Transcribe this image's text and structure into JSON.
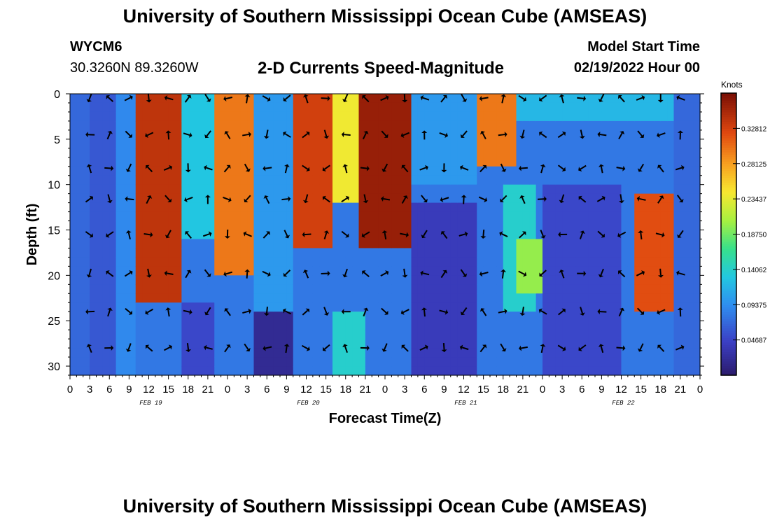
{
  "header": {
    "title": "University of Southern Mississippi Ocean Cube (AMSEAS)",
    "footer_title": "University of Southern Mississippi Ocean Cube (AMSEAS)",
    "station_id": "WYCM6",
    "station_coords": "30.3260N  89.3260W",
    "model_start_label": "Model Start Time",
    "model_start_value": "02/19/2022 Hour 00"
  },
  "chart_data": {
    "type": "heatmap",
    "title": "2-D Currents Speed-Magnitude",
    "xlabel": "Forecast Time(Z)",
    "ylabel": "Depth (ft)",
    "colorbar_label": "Knots",
    "colorbar_ticks": [
      "0.32812",
      "0.28125",
      "0.23437",
      "0.18750",
      "0.14062",
      "0.09375",
      "0.04687"
    ],
    "colorbar_values": [
      0.32812,
      0.28125,
      0.23437,
      0.1875,
      0.14062,
      0.09375,
      0.04687
    ],
    "colorbar_range": [
      0,
      0.375
    ],
    "xlim": [
      0,
      96
    ],
    "ylim": [
      0,
      31
    ],
    "x_tick_hours": [
      0,
      3,
      6,
      9,
      12,
      15,
      18,
      21,
      24,
      27,
      30,
      33,
      36,
      39,
      42,
      45,
      48,
      51,
      54,
      57,
      60,
      63,
      66,
      69,
      72,
      75,
      78,
      81,
      84,
      87,
      90,
      93,
      96
    ],
    "x_tick_labels": [
      "0",
      "3",
      "6",
      "9",
      "12",
      "15",
      "18",
      "21",
      "0",
      "3",
      "6",
      "9",
      "12",
      "15",
      "18",
      "21",
      "0",
      "3",
      "6",
      "9",
      "12",
      "15",
      "18",
      "21",
      "0",
      "3",
      "6",
      "9",
      "12",
      "15",
      "18",
      "21",
      "0"
    ],
    "y_ticks": [
      0,
      5,
      10,
      15,
      20,
      25,
      30
    ],
    "date_labels": [
      {
        "hour": 12,
        "text": "FEB 19"
      },
      {
        "hour": 36,
        "text": "FEB 20"
      },
      {
        "hour": 60,
        "text": "FEB 21"
      },
      {
        "hour": 84,
        "text": "FEB 22"
      }
    ],
    "arrow_depths": [
      0.5,
      4.5,
      8.2,
      11.6,
      15.5,
      19.8,
      24,
      28
    ],
    "speed_ranges": [
      {
        "x0": 0,
        "x1": 3,
        "y0": 0,
        "y1": 31,
        "speed": 0.07
      },
      {
        "x0": 3,
        "x1": 7,
        "y0": 0,
        "y1": 31,
        "speed": 0.06
      },
      {
        "x0": 7,
        "x1": 10,
        "y0": 0,
        "y1": 31,
        "speed": 0.09
      },
      {
        "x0": 10,
        "x1": 17,
        "y0": 0,
        "y1": 23,
        "speed": 0.34
      },
      {
        "x0": 17,
        "x1": 22,
        "y0": 0,
        "y1": 16,
        "speed": 0.13
      },
      {
        "x0": 22,
        "x1": 28,
        "y0": 0,
        "y1": 20,
        "speed": 0.3
      },
      {
        "x0": 28,
        "x1": 34,
        "y0": 0,
        "y1": 31,
        "speed": 0.1
      },
      {
        "x0": 34,
        "x1": 40,
        "y0": 0,
        "y1": 17,
        "speed": 0.33
      },
      {
        "x0": 40,
        "x1": 44,
        "y0": 0,
        "y1": 12,
        "speed": 0.24
      },
      {
        "x0": 44,
        "x1": 52,
        "y0": 0,
        "y1": 17,
        "speed": 0.36
      },
      {
        "x0": 52,
        "x1": 62,
        "y0": 0,
        "y1": 10,
        "speed": 0.1
      },
      {
        "x0": 62,
        "x1": 68,
        "y0": 0,
        "y1": 8,
        "speed": 0.3
      },
      {
        "x0": 68,
        "x1": 96,
        "y0": 0,
        "y1": 3,
        "speed": 0.12
      },
      {
        "x0": 66,
        "x1": 71,
        "y0": 10,
        "y1": 24,
        "speed": 0.14
      },
      {
        "x0": 68,
        "x1": 72,
        "y0": 16,
        "y1": 22,
        "speed": 0.2
      },
      {
        "x0": 86,
        "x1": 92,
        "y0": 11,
        "y1": 24,
        "speed": 0.32
      },
      {
        "x0": 52,
        "x1": 62,
        "y0": 12,
        "y1": 31,
        "speed": 0.04
      },
      {
        "x0": 72,
        "x1": 84,
        "y0": 10,
        "y1": 31,
        "speed": 0.05
      },
      {
        "x0": 28,
        "x1": 34,
        "y0": 24,
        "y1": 31,
        "speed": 0.02
      },
      {
        "x0": 17,
        "x1": 22,
        "y0": 23,
        "y1": 31,
        "speed": 0.05
      },
      {
        "x0": 40,
        "x1": 45,
        "y0": 24,
        "y1": 31,
        "speed": 0.14
      },
      {
        "x0": 92,
        "x1": 96,
        "y0": 0,
        "y1": 31,
        "speed": 0.07
      }
    ]
  }
}
